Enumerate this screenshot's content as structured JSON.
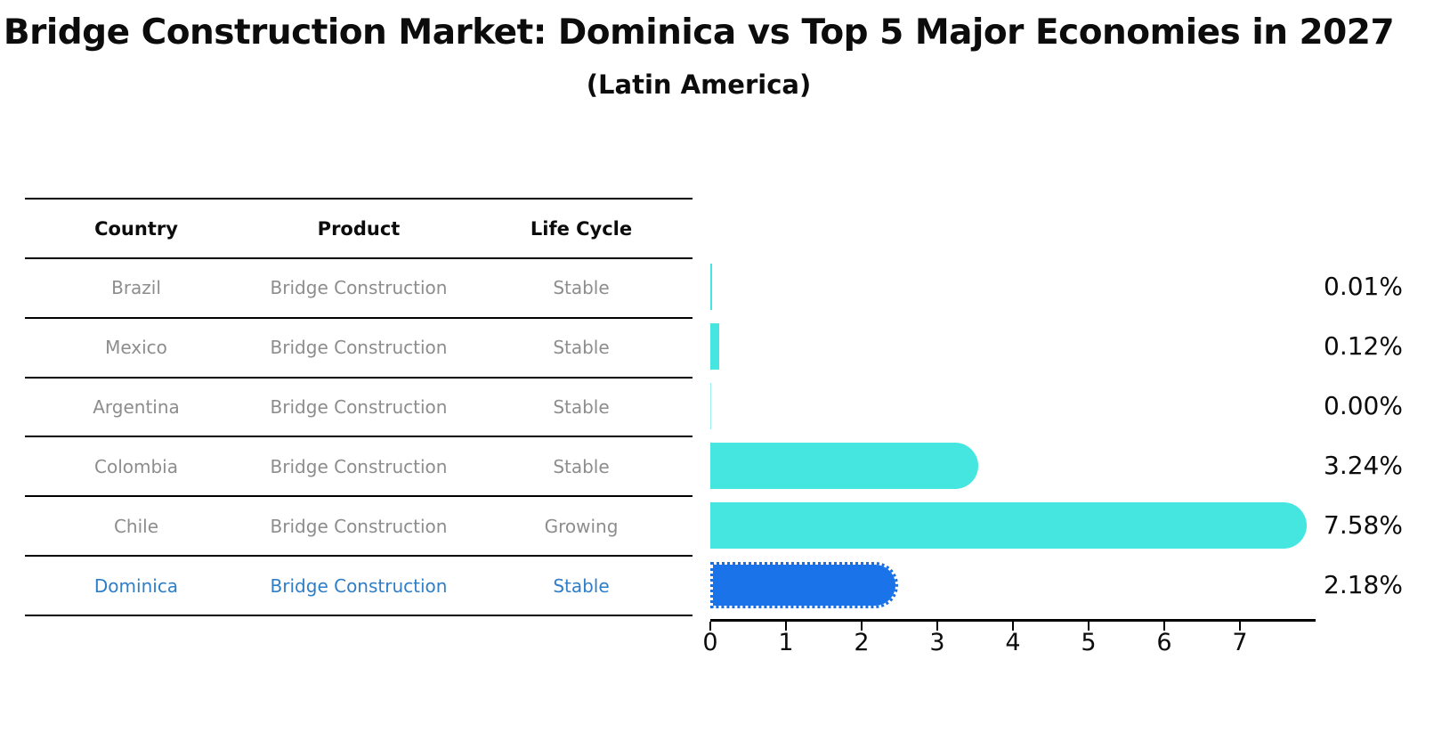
{
  "title": "Bridge Construction Market: Dominica vs Top 5 Major Economies in 2027",
  "subtitle": "(Latin America)",
  "table": {
    "headers": [
      "Country",
      "Product",
      "Life Cycle"
    ],
    "rows": [
      {
        "country": "Brazil",
        "product": "Bridge Construction",
        "life_cycle": "Stable",
        "highlight": false
      },
      {
        "country": "Mexico",
        "product": "Bridge Construction",
        "life_cycle": "Stable",
        "highlight": false
      },
      {
        "country": "Argentina",
        "product": "Bridge Construction",
        "life_cycle": "Stable",
        "highlight": false
      },
      {
        "country": "Colombia",
        "product": "Bridge Construction",
        "life_cycle": "Stable",
        "highlight": false
      },
      {
        "country": "Chile",
        "product": "Bridge Construction",
        "life_cycle": "Growing",
        "highlight": false
      },
      {
        "country": "Dominica",
        "product": "Bridge Construction",
        "life_cycle": "Stable",
        "highlight": true
      }
    ]
  },
  "chart_data": {
    "type": "bar",
    "orientation": "horizontal",
    "title": "Bridge Construction Market: Dominica vs Top 5 Major Economies in 2027 (Latin America)",
    "categories": [
      "Brazil",
      "Mexico",
      "Argentina",
      "Colombia",
      "Chile",
      "Dominica"
    ],
    "values": [
      0.01,
      0.12,
      0.0,
      3.24,
      7.58,
      2.18
    ],
    "value_labels": [
      "0.01%",
      "0.12%",
      "0.00%",
      "3.24%",
      "7.58%",
      "2.18%"
    ],
    "x_ticks": [
      "0",
      "1",
      "2",
      "3",
      "4",
      "5",
      "6",
      "7"
    ],
    "xlim": [
      0,
      8
    ],
    "grid": false,
    "legend": false,
    "bar_color": "#45e6e0",
    "highlight_color": "#1a73e8",
    "highlight_index": 5,
    "highlight_edge_style": "dotted"
  },
  "colors": {
    "background": "#ffffff",
    "title_text": "#0c0c0c",
    "table_header_text": "#0c0c0c",
    "table_row_text": "#8d8d8d",
    "highlight_row_text": "#2e7ec8",
    "table_lines": "#000000",
    "axis": "#000000",
    "bar": "#45e6e0",
    "highlight_bar": "#1a73e8"
  }
}
